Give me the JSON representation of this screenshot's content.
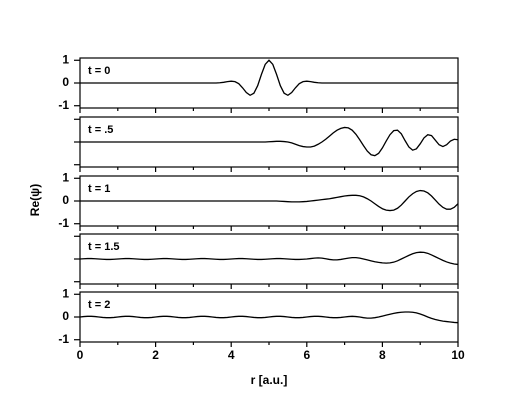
{
  "chart_data": {
    "type": "line",
    "xlabel": "r [a.u.]",
    "ylabel": "Re(ψ)",
    "color": "#000000",
    "xlim": [
      0,
      10
    ],
    "xticks": [
      0,
      2,
      4,
      6,
      8,
      10
    ],
    "xminor": [
      1,
      3,
      5,
      7,
      9
    ],
    "ylim": [
      -1.1,
      1.1
    ],
    "x": [
      0,
      0.1,
      0.2,
      0.3,
      0.4,
      0.5,
      0.6,
      0.7,
      0.8,
      0.9,
      1,
      1.1,
      1.2,
      1.3,
      1.4,
      1.5,
      1.6,
      1.7,
      1.8,
      1.9,
      2,
      2.1,
      2.2,
      2.3,
      2.4,
      2.5,
      2.6,
      2.7,
      2.8,
      2.9,
      3,
      3.1,
      3.2,
      3.3,
      3.4,
      3.5,
      3.6,
      3.7,
      3.8,
      3.9,
      4,
      4.1,
      4.2,
      4.3,
      4.4,
      4.5,
      4.6,
      4.7,
      4.8,
      4.9,
      5,
      5.1,
      5.2,
      5.3,
      5.4,
      5.5,
      5.6,
      5.7,
      5.8,
      5.9,
      6,
      6.1,
      6.2,
      6.3,
      6.4,
      6.5,
      6.6,
      6.7,
      6.8,
      6.9,
      7,
      7.1,
      7.2,
      7.3,
      7.4,
      7.5,
      7.6,
      7.7,
      7.8,
      7.9,
      8,
      8.1,
      8.2,
      8.3,
      8.4,
      8.5,
      8.6,
      8.7,
      8.8,
      8.9,
      9,
      9.1,
      9.2,
      9.3,
      9.4,
      9.5,
      9.6,
      9.7,
      9.8,
      9.9,
      10
    ],
    "panels": [
      {
        "label": "t = 0",
        "yticks": [
          -1,
          0,
          1
        ],
        "values": [
          0,
          0,
          0,
          0,
          0,
          0,
          0,
          0,
          0,
          0,
          0,
          0,
          0,
          0,
          0,
          0,
          0,
          0,
          0,
          0,
          0,
          0,
          0,
          0,
          0,
          0,
          0,
          0,
          0,
          0,
          0,
          0,
          0,
          0,
          0,
          0,
          0,
          0.01,
          0.03,
          0.06,
          0.08,
          0.06,
          -0.03,
          -0.21,
          -0.42,
          -0.54,
          -0.45,
          -0.12,
          0.38,
          0.82,
          1,
          0.82,
          0.38,
          -0.12,
          -0.45,
          -0.54,
          -0.42,
          -0.21,
          -0.03,
          0.06,
          0.08,
          0.06,
          0.03,
          0.01,
          0,
          0,
          0,
          0,
          0,
          0,
          0,
          0,
          0,
          0,
          0,
          0,
          0,
          0,
          0,
          0,
          0,
          0,
          0,
          0,
          0,
          0,
          0,
          0,
          0,
          0,
          0,
          0,
          0,
          0,
          0,
          0,
          0,
          0,
          0,
          0,
          0
        ]
      },
      {
        "label": "t = .5",
        "ytick_marks": [
          -1,
          0,
          1
        ],
        "values": [
          0,
          0,
          0,
          0,
          0,
          0,
          0,
          0,
          0,
          0,
          0,
          0,
          0,
          0,
          0,
          0,
          0,
          0,
          0,
          0,
          0,
          0,
          0,
          0,
          0,
          0,
          0,
          0,
          0,
          0,
          0,
          0,
          0,
          0,
          0,
          0,
          0,
          0,
          0,
          0,
          0,
          0,
          0,
          0,
          0,
          0,
          0,
          0,
          0,
          0,
          0.01,
          0.02,
          0.03,
          0.03,
          0.02,
          0,
          -0.04,
          -0.1,
          -0.16,
          -0.2,
          -0.22,
          -0.22,
          -0.18,
          -0.1,
          0,
          0.12,
          0.26,
          0.4,
          0.52,
          0.6,
          0.64,
          0.62,
          0.52,
          0.34,
          0.1,
          -0.16,
          -0.4,
          -0.56,
          -0.6,
          -0.5,
          -0.26,
          0.04,
          0.32,
          0.5,
          0.52,
          0.36,
          0.06,
          -0.22,
          -0.36,
          -0.3,
          -0.08,
          0.18,
          0.32,
          0.28,
          0.08,
          -0.12,
          -0.2,
          -0.12,
          0.04,
          0.12,
          0.1
        ]
      },
      {
        "label": "t = 1",
        "yticks": [
          -1,
          0,
          1
        ],
        "values": [
          0,
          0,
          0,
          0,
          0,
          0,
          0,
          0,
          0,
          0,
          0,
          0,
          0,
          0,
          0,
          0,
          0,
          0,
          0,
          0,
          0,
          0,
          0,
          0,
          0,
          0,
          0,
          0,
          0,
          0,
          0,
          0,
          0,
          0,
          0,
          0,
          0,
          0,
          0,
          0,
          0,
          0,
          0,
          0,
          0,
          0,
          0,
          0,
          0,
          0,
          0,
          0,
          0,
          -0.01,
          -0.02,
          -0.03,
          -0.04,
          -0.04,
          -0.04,
          -0.03,
          -0.02,
          0,
          0.02,
          0.04,
          0.06,
          0.08,
          0.1,
          0.13,
          0.16,
          0.19,
          0.22,
          0.24,
          0.25,
          0.25,
          0.23,
          0.18,
          0.1,
          0,
          -0.12,
          -0.24,
          -0.34,
          -0.4,
          -0.42,
          -0.4,
          -0.32,
          -0.18,
          0,
          0.18,
          0.32,
          0.42,
          0.46,
          0.44,
          0.36,
          0.22,
          0.04,
          -0.14,
          -0.28,
          -0.36,
          -0.36,
          -0.28,
          -0.12
        ]
      },
      {
        "label": "t = 1.5",
        "ytick_marks": [
          -1,
          0,
          1
        ],
        "values": [
          0,
          0.01,
          0.02,
          0.02,
          0.01,
          0,
          -0.01,
          -0.02,
          -0.02,
          -0.01,
          0,
          0.01,
          0.02,
          0.02,
          0.01,
          0,
          -0.01,
          -0.02,
          -0.02,
          -0.01,
          0,
          0.01,
          0.02,
          0.02,
          0.01,
          0,
          -0.01,
          -0.02,
          -0.02,
          -0.01,
          0,
          0.01,
          0.02,
          0.02,
          0.01,
          0,
          -0.01,
          -0.02,
          -0.02,
          -0.01,
          0,
          0.01,
          0.02,
          0.02,
          0.01,
          0,
          -0.01,
          -0.02,
          -0.02,
          -0.01,
          0,
          0.01,
          0.02,
          0.02,
          0.01,
          0,
          -0.01,
          -0.02,
          -0.02,
          -0.01,
          0,
          0.02,
          0.04,
          0.05,
          0.04,
          0.01,
          -0.02,
          -0.04,
          -0.04,
          -0.02,
          0.01,
          0.04,
          0.06,
          0.06,
          0.04,
          0,
          -0.04,
          -0.08,
          -0.12,
          -0.15,
          -0.17,
          -0.18,
          -0.17,
          -0.14,
          -0.08,
          0,
          0.08,
          0.16,
          0.23,
          0.28,
          0.3,
          0.29,
          0.25,
          0.18,
          0.1,
          0.02,
          -0.06,
          -0.13,
          -0.18,
          -0.22,
          -0.24
        ]
      },
      {
        "label": "t = 2",
        "yticks": [
          -1,
          0,
          1
        ],
        "values": [
          0,
          0.02,
          0.03,
          0.03,
          0.02,
          0,
          -0.02,
          -0.03,
          -0.03,
          -0.02,
          0,
          0.02,
          0.03,
          0.03,
          0.02,
          0,
          -0.02,
          -0.03,
          -0.03,
          -0.02,
          0,
          0.02,
          0.03,
          0.03,
          0.02,
          0,
          -0.02,
          -0.03,
          -0.03,
          -0.02,
          0,
          0.02,
          0.03,
          0.03,
          0.02,
          0,
          -0.02,
          -0.03,
          -0.03,
          -0.02,
          0,
          0.02,
          0.03,
          0.03,
          0.02,
          0,
          -0.02,
          -0.03,
          -0.03,
          -0.02,
          0,
          0.02,
          0.03,
          0.03,
          0.02,
          0,
          -0.02,
          -0.03,
          -0.03,
          -0.02,
          0,
          0.02,
          0.03,
          0.03,
          0.02,
          0,
          -0.02,
          -0.03,
          -0.03,
          -0.02,
          0,
          0.02,
          0.03,
          0.02,
          0,
          -0.03,
          -0.05,
          -0.05,
          -0.03,
          0,
          0.04,
          0.08,
          0.12,
          0.16,
          0.19,
          0.21,
          0.22,
          0.22,
          0.21,
          0.18,
          0.13,
          0.07,
          0,
          -0.06,
          -0.11,
          -0.15,
          -0.18,
          -0.2,
          -0.22,
          -0.24,
          -0.25
        ]
      }
    ]
  }
}
